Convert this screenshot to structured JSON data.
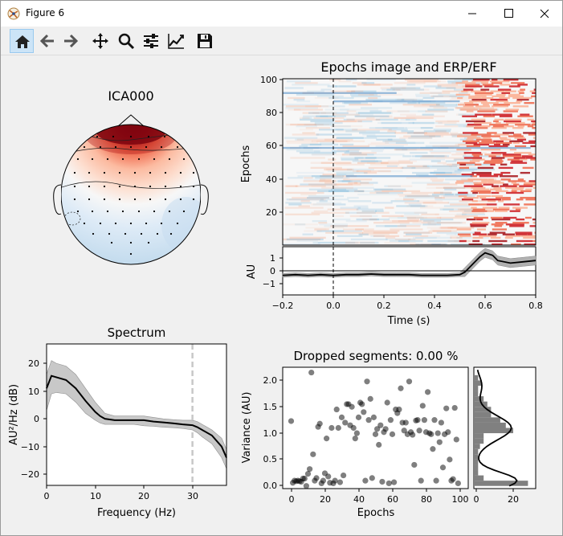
{
  "window": {
    "title": "Figure 6"
  },
  "toolbar": {
    "tools": [
      "home-icon",
      "back-icon",
      "forward-icon",
      "pan-icon",
      "zoom-icon",
      "configure-subplots-icon",
      "edit-axis-icon",
      "save-icon"
    ]
  },
  "topomap": {
    "title": "ICA000"
  },
  "epochs_image": {
    "title": "Epochs image and ERP/ERF",
    "ylabel": "Epochs",
    "yticks": [
      "100",
      "80",
      "60",
      "40",
      "20"
    ]
  },
  "erp": {
    "ylabel": "AU",
    "xlabel": "Time (s)",
    "yticks": [
      "1",
      "0",
      "−1"
    ],
    "xticks": [
      "−0.2",
      "0.0",
      "0.2",
      "0.4",
      "0.6",
      "0.8"
    ]
  },
  "spectrum": {
    "title": "Spectrum",
    "xlabel": "Frequency (Hz)",
    "ylabel": "AU²/Hz (dB)",
    "xticks": [
      "0",
      "10",
      "20",
      "30"
    ],
    "yticks": [
      "20",
      "10",
      "0",
      "−10",
      "−20"
    ]
  },
  "dropped": {
    "title": "Dropped segments: 0.00 %",
    "xlabel": "Epochs",
    "ylabel": "Variance (AU)",
    "xticks": [
      "0",
      "20",
      "40",
      "60",
      "80",
      "100"
    ],
    "yticks": [
      "2.0",
      "1.5",
      "1.0",
      "0.5",
      "0.0"
    ],
    "hist_xticks": [
      "0",
      "20"
    ]
  },
  "chart_data": [
    {
      "type": "line",
      "title": "Spectrum",
      "xlabel": "Frequency (Hz)",
      "ylabel": "AU²/Hz (dB)",
      "xlim": [
        0,
        37
      ],
      "ylim": [
        -24,
        27
      ],
      "x": [
        0,
        1,
        2,
        4,
        6,
        8,
        10,
        11,
        12,
        14,
        16,
        18,
        20,
        22,
        24,
        26,
        28,
        30,
        31,
        32,
        34,
        36,
        37
      ],
      "series": [
        {
          "name": "mean",
          "values": [
            11,
            15.5,
            15,
            14,
            11,
            6.5,
            2.5,
            1,
            0,
            -0.5,
            -0.5,
            -0.5,
            -0.5,
            -1,
            -1.3,
            -1.6,
            -2,
            -2.3,
            -3,
            -4,
            -6,
            -10,
            -14
          ]
        },
        {
          "name": "upper",
          "values": [
            16,
            21,
            20,
            19,
            16,
            11,
            6,
            4,
            2,
            1,
            1,
            1,
            1,
            0.5,
            0,
            -0.3,
            -0.5,
            -0.5,
            -1,
            -2,
            -4,
            -7,
            -11
          ]
        },
        {
          "name": "lower",
          "values": [
            3,
            9,
            9.5,
            9,
            6,
            2,
            -0.5,
            -1.5,
            -2,
            -2,
            -2,
            -2,
            -2.5,
            -2.7,
            -3,
            -3.2,
            -3.5,
            -4,
            -5,
            -6.5,
            -9,
            -14,
            -18
          ]
        }
      ],
      "vline_x": 30
    },
    {
      "type": "line",
      "title": "",
      "xlabel": "Time (s)",
      "ylabel": "AU",
      "xlim": [
        -0.2,
        0.8
      ],
      "ylim": [
        -1.8,
        1.8
      ],
      "x": [
        -0.2,
        -0.15,
        -0.1,
        -0.05,
        0.0,
        0.05,
        0.1,
        0.15,
        0.2,
        0.25,
        0.3,
        0.35,
        0.4,
        0.45,
        0.5,
        0.52,
        0.55,
        0.58,
        0.6,
        0.63,
        0.65,
        0.7,
        0.75,
        0.8
      ],
      "series": [
        {
          "name": "erp",
          "values": [
            -0.35,
            -0.3,
            -0.35,
            -0.3,
            -0.35,
            -0.3,
            -0.3,
            -0.25,
            -0.3,
            -0.3,
            -0.3,
            -0.35,
            -0.35,
            -0.35,
            -0.3,
            -0.1,
            0.5,
            1.1,
            1.4,
            1.2,
            0.8,
            0.6,
            0.7,
            0.8
          ]
        }
      ]
    },
    {
      "type": "scatter",
      "title": "Dropped segments: 0.00 %",
      "xlabel": "Epochs",
      "ylabel": "Variance (AU)",
      "xlim": [
        -5,
        105
      ],
      "ylim": [
        -0.05,
        2.25
      ],
      "x": [
        0,
        1,
        2,
        3,
        4,
        5,
        6,
        7,
        8,
        9,
        10,
        11,
        12,
        13,
        14,
        15,
        16,
        17,
        18,
        19,
        20,
        21,
        22,
        23,
        24,
        25,
        26,
        27,
        28,
        29,
        30,
        31,
        32,
        33,
        34,
        35,
        36,
        37,
        38,
        39,
        40,
        41,
        42,
        43,
        44,
        45,
        46,
        47,
        48,
        49,
        50,
        51,
        52,
        53,
        54,
        55,
        56,
        57,
        58,
        59,
        60,
        61,
        62,
        63,
        64,
        65,
        66,
        67,
        68,
        69,
        70,
        71,
        72,
        73,
        74,
        75,
        76,
        77,
        78,
        79,
        80,
        81,
        82,
        83,
        84,
        85,
        86,
        87,
        88,
        89,
        90,
        91,
        92,
        93,
        94,
        95,
        96,
        97,
        98,
        99
      ],
      "y": [
        1.23,
        0.06,
        0.1,
        0.09,
        0.1,
        0.09,
        0.08,
        0.14,
        0.14,
        0.0,
        0.23,
        0.32,
        2.15,
        0.6,
        0.1,
        0.15,
        1.12,
        1.18,
        0.05,
        0.1,
        0.24,
        0.9,
        0.18,
        0.06,
        1.1,
        0.05,
        0.1,
        1.45,
        1.1,
        0.07,
        1.3,
        0.2,
        1.2,
        1.55,
        1.55,
        1.15,
        1.5,
        1.1,
        0.9,
        1.0,
        1.3,
        1.58,
        1.55,
        1.4,
        0.1,
        1.98,
        1.25,
        1.65,
        0.15,
        1.3,
        0.98,
        1.08,
        0.78,
        1.15,
        0.08,
        1.02,
        1.08,
        1.58,
        0.05,
        1.25,
        0.98,
        0.07,
        1.45,
        1.38,
        1.45,
        1.85,
        1.2,
        1.05,
        1.2,
        0.98,
        1.98,
        1.02,
        0.97,
        0.4,
        1.24,
        1.25,
        1.05,
        0.1,
        1.52,
        1.25,
        1.02,
        1.78,
        1.0,
        0.98,
        0.7,
        1.25,
        0.1,
        1.0,
        0.83,
        1.2,
        0.35,
        0.98,
        1.47,
        1.02,
        0.5,
        0.1,
        0.13,
        1.48,
        0.88,
        0.05
      ]
    },
    {
      "type": "bar",
      "title": "",
      "orientation": "horizontal",
      "xlim": [
        0,
        32
      ],
      "ylim": [
        -0.05,
        2.25
      ],
      "bin_edges": [
        0.0,
        0.1,
        0.2,
        0.3,
        0.4,
        0.5,
        0.6,
        0.7,
        0.8,
        0.9,
        1.0,
        1.1,
        1.2,
        1.3,
        1.4,
        1.5,
        1.6,
        1.7,
        1.8,
        1.9,
        2.0,
        2.1,
        2.2
      ],
      "values": [
        28,
        4,
        1,
        1,
        1,
        1,
        1,
        2,
        4,
        4,
        20,
        16,
        13,
        8,
        8,
        6,
        4,
        1,
        1,
        3,
        1,
        0
      ],
      "kde_color": "#000000"
    }
  ],
  "colors": {
    "hot": "#a50f15",
    "cold": "#4a8bc4",
    "band": "#c0c0c0",
    "hist": "#808080",
    "vline": "#c8c8c8"
  }
}
